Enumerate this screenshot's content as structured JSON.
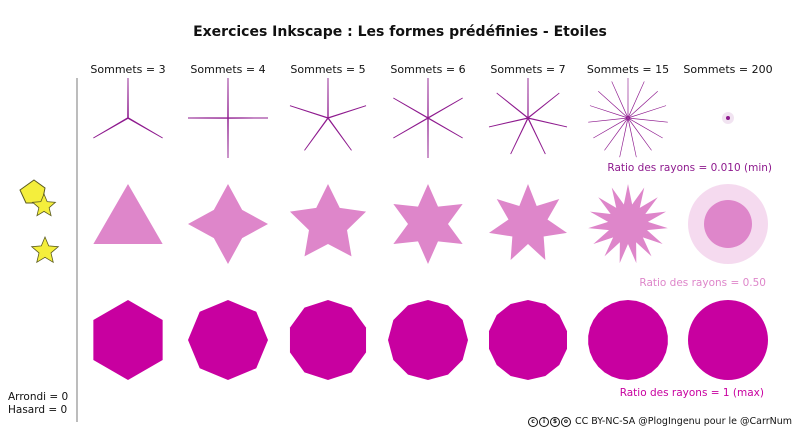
{
  "title": "Exercices Inkscape : Les formes prédéfinies - Etoiles",
  "columns": [
    {
      "label": "Sommets = 3",
      "corners": 3
    },
    {
      "label": "Sommets = 4",
      "corners": 4
    },
    {
      "label": "Sommets = 5",
      "corners": 5
    },
    {
      "label": "Sommets = 6",
      "corners": 6
    },
    {
      "label": "Sommets = 7",
      "corners": 7
    },
    {
      "label": "Sommets = 15",
      "corners": 15
    },
    {
      "label": "Sommets = 200",
      "corners": 200
    }
  ],
  "rows": [
    {
      "ratio": 0.01,
      "label": "Ratio des rayons = 0.010 (min)",
      "color": "#8e1a8e"
    },
    {
      "ratio": 0.5,
      "label": "Ratio des rayons = 0.50",
      "color": "#de86ca"
    },
    {
      "ratio": 1,
      "label": "Ratio des rayons = 1 (max)",
      "color": "#c800a0"
    }
  ],
  "params": {
    "rounded": "Arrondi = 0",
    "random": "Hasard = 0"
  },
  "license": {
    "text": "CC BY-NC-SA @PlogIngenu pour le @CarrNum",
    "badge": [
      "cc",
      "by",
      "nc",
      "sa"
    ]
  },
  "toolbox_colors": {
    "star_fill": "#f4ee3c",
    "star_stroke": "#5a5a20"
  }
}
